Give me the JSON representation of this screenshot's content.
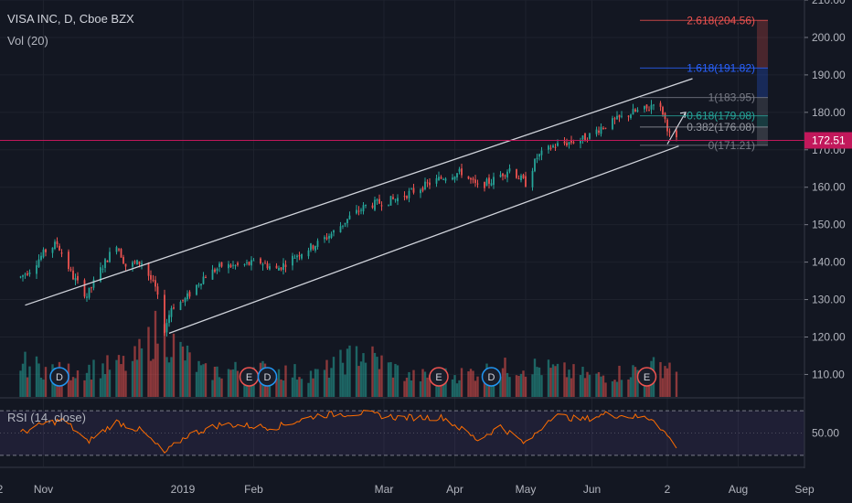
{
  "header": {
    "symbol": "VISA INC, D, Cboe BZX",
    "volume_label": "Vol (20)",
    "rsi_label": "RSI (14, close)"
  },
  "colors": {
    "background": "#131722",
    "up": "#26a69a",
    "down": "#ef5350",
    "grid": "#1e222d",
    "price_line": "#c2185b",
    "rsi_line": "#ff6d00",
    "rsi_band": "#7e57c2"
  },
  "chart_data": [
    {
      "type": "candlestick",
      "title": "VISA INC, D, Cboe BZX",
      "ylim": [
        104,
        210
      ],
      "y_ticks": [
        "210.00",
        "200.00",
        "190.00",
        "180.00",
        "170.00",
        "160.00",
        "150.00",
        "140.00",
        "130.00",
        "120.00",
        "110.00"
      ],
      "y_tick_values": [
        210,
        200,
        190,
        180,
        170,
        160,
        150,
        140,
        130,
        120,
        110
      ],
      "x_ticks": [
        "Nov",
        "2019",
        "Feb",
        "Mar",
        "Apr",
        "May",
        "Jun",
        "2",
        "Aug",
        "Sep",
        "2"
      ],
      "last_price": "172.51",
      "last_price_value": 172.51,
      "price_anchors": [
        [
          "2018-10-22",
          136
        ],
        [
          "2018-10-26",
          138
        ],
        [
          "2018-11-02",
          143
        ],
        [
          "2018-11-07",
          145
        ],
        [
          "2018-11-14",
          136
        ],
        [
          "2018-11-20",
          131
        ],
        [
          "2018-11-26",
          138
        ],
        [
          "2018-12-03",
          145
        ],
        [
          "2018-12-07",
          139
        ],
        [
          "2018-12-14",
          140
        ],
        [
          "2018-12-20",
          133
        ],
        [
          "2018-12-24",
          122
        ],
        [
          "2018-12-27",
          128
        ],
        [
          "2019-01-02",
          130
        ],
        [
          "2019-01-10",
          136
        ],
        [
          "2019-01-18",
          139
        ],
        [
          "2019-01-25",
          139
        ],
        [
          "2019-02-04",
          140
        ],
        [
          "2019-02-11",
          138
        ],
        [
          "2019-02-20",
          142
        ],
        [
          "2019-03-01",
          145
        ],
        [
          "2019-03-08",
          148
        ],
        [
          "2019-03-15",
          152
        ],
        [
          "2019-03-22",
          155
        ],
        [
          "2019-03-29",
          156
        ],
        [
          "2019-04-05",
          157
        ],
        [
          "2019-04-12",
          159
        ],
        [
          "2019-04-19",
          161
        ],
        [
          "2019-04-26",
          163
        ],
        [
          "2019-05-03",
          164
        ],
        [
          "2019-05-10",
          160
        ],
        [
          "2019-05-17",
          162
        ],
        [
          "2019-05-24",
          165
        ],
        [
          "2019-05-31",
          161
        ],
        [
          "2019-06-05",
          168
        ],
        [
          "2019-06-12",
          171
        ],
        [
          "2019-06-19",
          172
        ],
        [
          "2019-06-26",
          173
        ],
        [
          "2019-07-03",
          176
        ],
        [
          "2019-07-10",
          178
        ],
        [
          "2019-07-17",
          180
        ],
        [
          "2019-07-24",
          181
        ],
        [
          "2019-07-26",
          183
        ],
        [
          "2019-07-30",
          180
        ],
        [
          "2019-08-02",
          174
        ],
        [
          "2019-08-05",
          172.5
        ]
      ],
      "channel_upper": [
        [
          "2018-10-24",
          128.5
        ],
        [
          "2019-08-12",
          189
        ]
      ],
      "channel_lower": [
        [
          "2018-12-26",
          121
        ],
        [
          "2019-08-06",
          171
        ]
      ],
      "projection_arrow": [
        [
          "2019-08-01",
          171.5
        ],
        [
          "2019-08-09",
          180
        ]
      ],
      "fibonacci": [
        {
          "label": "2.618(204.56)",
          "value": 204.56,
          "color": "#ef5350"
        },
        {
          "label": "1.618(191.82)",
          "value": 191.82,
          "color": "#2962ff"
        },
        {
          "label": "1(183.95)",
          "value": 183.95,
          "color": "#787b86"
        },
        {
          "label": "0.618(179.08)",
          "value": 179.08,
          "color": "#26a69a"
        },
        {
          "label": "0.382(176.08)",
          "value": 176.08,
          "color": "#9598a1"
        },
        {
          "label": "0(171.21)",
          "value": 171.21,
          "color": "#787b86"
        }
      ],
      "events": [
        {
          "label": "D",
          "date": "2018-11-08"
        },
        {
          "label": "E",
          "date": "2019-01-30"
        },
        {
          "label": "D",
          "date": "2019-02-07"
        },
        {
          "label": "E",
          "date": "2019-04-23"
        },
        {
          "label": "D",
          "date": "2019-05-16"
        },
        {
          "label": "E",
          "date": "2019-07-23"
        }
      ]
    },
    {
      "type": "bar",
      "series": "volume",
      "volume_anchors": [
        [
          "2018-10-22",
          30
        ],
        [
          "2018-11-10",
          22
        ],
        [
          "2018-12-10",
          30
        ],
        [
          "2018-12-21",
          60
        ],
        [
          "2019-01-10",
          22
        ],
        [
          "2019-02-01",
          25
        ],
        [
          "2019-03-01",
          20
        ],
        [
          "2019-03-20",
          40
        ],
        [
          "2019-04-10",
          18
        ],
        [
          "2019-05-01",
          20
        ],
        [
          "2019-05-31",
          28
        ],
        [
          "2019-07-01",
          18
        ],
        [
          "2019-08-05",
          30
        ]
      ]
    },
    {
      "type": "line",
      "series": "RSI (14, close)",
      "ylim": [
        20,
        80
      ],
      "y_ticks": [
        "50.00"
      ],
      "y_tick_values": [
        50
      ],
      "band": [
        30,
        70
      ],
      "rsi_anchors": [
        [
          "2018-10-22",
          50
        ],
        [
          "2018-11-01",
          58
        ],
        [
          "2018-11-10",
          62
        ],
        [
          "2018-11-20",
          42
        ],
        [
          "2018-12-03",
          60
        ],
        [
          "2018-12-14",
          52
        ],
        [
          "2018-12-24",
          32
        ],
        [
          "2019-01-03",
          48
        ],
        [
          "2019-01-18",
          58
        ],
        [
          "2019-02-10",
          55
        ],
        [
          "2019-03-01",
          66
        ],
        [
          "2019-03-20",
          68
        ],
        [
          "2019-04-05",
          64
        ],
        [
          "2019-04-25",
          64
        ],
        [
          "2019-05-10",
          44
        ],
        [
          "2019-05-20",
          56
        ],
        [
          "2019-05-31",
          40
        ],
        [
          "2019-06-12",
          66
        ],
        [
          "2019-06-25",
          62
        ],
        [
          "2019-07-05",
          67
        ],
        [
          "2019-07-26",
          63
        ],
        [
          "2019-07-31",
          50
        ],
        [
          "2019-08-05",
          38
        ]
      ]
    }
  ]
}
